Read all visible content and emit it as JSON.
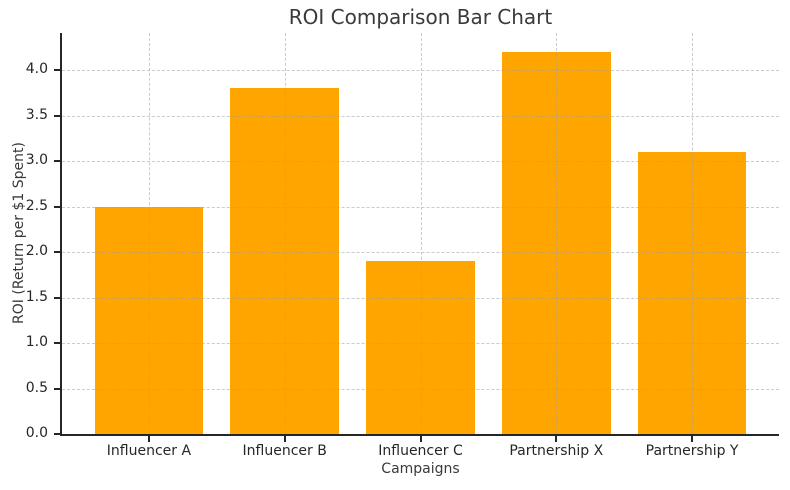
{
  "chart_data": {
    "type": "bar",
    "title": "ROI Comparison Bar Chart",
    "xlabel": "Campaigns",
    "ylabel": "ROI (Return per $1 Spent)",
    "categories": [
      "Influencer A",
      "Influencer B",
      "Influencer C",
      "Partnership X",
      "Partnership Y"
    ],
    "values": [
      2.5,
      3.8,
      1.9,
      4.2,
      3.1
    ],
    "yticks": [
      0.0,
      0.5,
      1.0,
      1.5,
      2.0,
      2.5,
      3.0,
      3.5,
      4.0
    ],
    "ylim": [
      0,
      4.41
    ],
    "bar_color": "#FFA500",
    "grid": true,
    "grid_style": "dashed",
    "grid_on_top_of_bars": true,
    "axis_color": "#262626",
    "text_color": "#3a3a3a",
    "background_color": "#ffffff",
    "legend": "none"
  }
}
